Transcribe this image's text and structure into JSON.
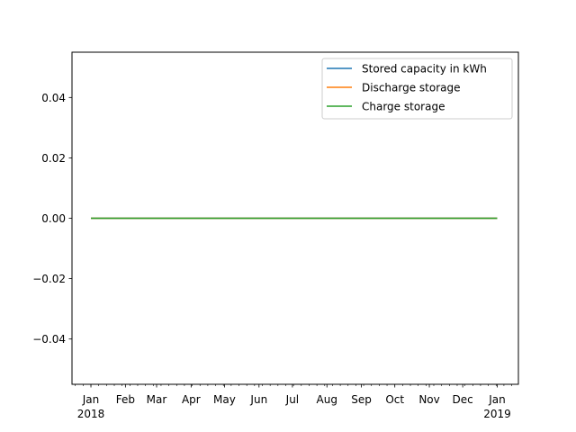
{
  "chart_data": {
    "type": "line",
    "title": "",
    "xlabel": "",
    "ylabel": "",
    "x_range": [
      "2017-12-15",
      "2019-01-20"
    ],
    "ylim": [
      -0.055,
      0.055
    ],
    "y_ticks": [
      {
        "value": 0.04,
        "label": "0.04"
      },
      {
        "value": 0.02,
        "label": "0.02"
      },
      {
        "value": 0.0,
        "label": "0.00"
      },
      {
        "value": -0.02,
        "label": "−0.02"
      },
      {
        "value": -0.04,
        "label": "−0.04"
      }
    ],
    "x_major_ticks": [
      {
        "date": "2018-01-01",
        "label": "Jan",
        "sublabel": "2018"
      },
      {
        "date": "2018-02-01",
        "label": "Feb",
        "sublabel": ""
      },
      {
        "date": "2018-03-01",
        "label": "Mar",
        "sublabel": ""
      },
      {
        "date": "2018-04-01",
        "label": "Apr",
        "sublabel": ""
      },
      {
        "date": "2018-05-01",
        "label": "May",
        "sublabel": ""
      },
      {
        "date": "2018-06-01",
        "label": "Jun",
        "sublabel": ""
      },
      {
        "date": "2018-07-01",
        "label": "Jul",
        "sublabel": ""
      },
      {
        "date": "2018-08-01",
        "label": "Aug",
        "sublabel": ""
      },
      {
        "date": "2018-09-01",
        "label": "Sep",
        "sublabel": ""
      },
      {
        "date": "2018-10-01",
        "label": "Oct",
        "sublabel": ""
      },
      {
        "date": "2018-11-01",
        "label": "Nov",
        "sublabel": ""
      },
      {
        "date": "2018-12-01",
        "label": "Dec",
        "sublabel": ""
      },
      {
        "date": "2019-01-01",
        "label": "Jan",
        "sublabel": "2019"
      }
    ],
    "grid": false,
    "legend_position": "top-right",
    "series": [
      {
        "name": "Stored capacity in kWh",
        "color": "#1f77b4",
        "x": [
          "2018-01-01",
          "2019-01-01"
        ],
        "y": [
          0,
          0
        ]
      },
      {
        "name": "Discharge storage",
        "color": "#ff7f0e",
        "x": [
          "2018-01-01",
          "2019-01-01"
        ],
        "y": [
          0,
          0
        ]
      },
      {
        "name": "Charge storage",
        "color": "#2ca02c",
        "x": [
          "2018-01-01",
          "2019-01-01"
        ],
        "y": [
          0,
          0
        ]
      }
    ]
  }
}
